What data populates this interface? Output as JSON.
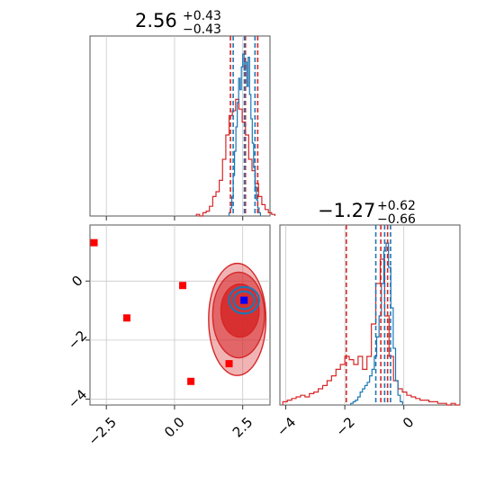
{
  "chart_data": {
    "type": "corner",
    "colors": {
      "blue": "#1f77b4",
      "red": "#d62728",
      "blue_marker": "#0000ff",
      "red_marker": "#ff0000"
    },
    "parameters": [
      {
        "title": {
          "median": "2.56",
          "plus": "+0.43",
          "minus": "−0.43"
        },
        "xlim": [
          -3.1,
          3.5
        ],
        "xticks": [
          {
            "value": -2.5,
            "label": "−2.5"
          },
          {
            "value": 0.0,
            "label": "0.0"
          },
          {
            "value": 2.5,
            "label": "2.5"
          }
        ],
        "blue_quantiles": [
          2.15,
          2.56,
          2.95
        ],
        "red_quantiles": [
          2.05,
          2.6,
          3.05
        ],
        "blue_hist": {
          "x0": 2.0,
          "dx": 0.05,
          "counts": [
            0.02,
            0.05,
            0.12,
            0.25,
            0.4,
            0.55,
            0.7,
            0.85,
            0.78,
            0.92,
            1.0,
            0.9,
            0.95,
            0.8,
            0.98,
            0.75,
            0.6,
            0.45,
            0.3,
            0.18,
            0.1,
            0.05,
            0.02
          ]
        },
        "red_hist": {
          "x0": 0.8,
          "dx": 0.12,
          "counts": [
            0.01,
            0.0,
            0.02,
            0.03,
            0.06,
            0.12,
            0.15,
            0.22,
            0.35,
            0.5,
            0.62,
            0.65,
            0.72,
            0.66,
            0.58,
            0.5,
            0.35,
            0.28,
            0.2,
            0.12,
            0.07,
            0.04,
            0.02,
            0.01
          ]
        }
      },
      {
        "title": {
          "median": "−1.27",
          "plus": "+0.62",
          "minus": "−0.66"
        },
        "xlim": [
          -4.2,
          1.9
        ],
        "xticks": [
          {
            "value": -4,
            "label": "−4"
          },
          {
            "value": -2,
            "label": "−2"
          },
          {
            "value": 0,
            "label": "0"
          }
        ],
        "yticks": [
          {
            "value": -4,
            "label": "−4"
          },
          {
            "value": -2,
            "label": "−2"
          },
          {
            "value": 0,
            "label": "0"
          }
        ],
        "ylim": [
          -4.2,
          1.9
        ],
        "blue_quantiles": [
          -0.95,
          -0.65,
          -0.45
        ],
        "red_quantiles": [
          -1.95,
          -0.78,
          -0.55
        ],
        "blue_hist": {
          "x0": -1.8,
          "dx": 0.08,
          "counts": [
            0.01,
            0.02,
            0.03,
            0.05,
            0.08,
            0.1,
            0.12,
            0.14,
            0.18,
            0.22,
            0.3,
            0.42,
            0.55,
            0.75,
            0.95,
            1.0,
            0.85,
            0.6,
            0.35,
            0.15,
            0.06,
            0.02
          ]
        },
        "red_hist": {
          "x0": -4.1,
          "dx": 0.15,
          "counts": [
            0.02,
            0.03,
            0.04,
            0.05,
            0.06,
            0.05,
            0.07,
            0.08,
            0.1,
            0.12,
            0.15,
            0.18,
            0.22,
            0.25,
            0.3,
            0.28,
            0.25,
            0.3,
            0.22,
            0.3,
            0.5,
            0.75,
            0.9,
            0.55,
            0.3,
            0.15,
            0.1,
            0.08,
            0.06,
            0.05,
            0.04,
            0.03,
            0.03,
            0.02,
            0.02,
            0.01,
            0.01,
            0.0,
            0.01,
            0.0
          ]
        }
      }
    ],
    "scatter": {
      "red_points": [
        [
          -2.95,
          1.3
        ],
        [
          -1.75,
          -1.25
        ],
        [
          0.3,
          -0.15
        ],
        [
          0.6,
          -3.4
        ],
        [
          2.0,
          -2.8
        ]
      ],
      "blue_points": [
        [
          2.55,
          -0.65
        ]
      ],
      "red_contours": [
        {
          "cx": 2.3,
          "cy": -1.3,
          "rx": 1.05,
          "ry": 1.9,
          "level": "outer"
        },
        {
          "cx": 2.35,
          "cy": -1.15,
          "rx": 0.95,
          "ry": 1.45,
          "level": "mid"
        },
        {
          "cx": 2.4,
          "cy": -1.0,
          "rx": 0.7,
          "ry": 0.9,
          "level": "inner"
        }
      ],
      "blue_contours": [
        {
          "cx": 2.55,
          "cy": -0.65,
          "rx": 0.55,
          "ry": 0.45
        },
        {
          "cx": 2.55,
          "cy": -0.65,
          "rx": 0.38,
          "ry": 0.3
        }
      ]
    }
  }
}
